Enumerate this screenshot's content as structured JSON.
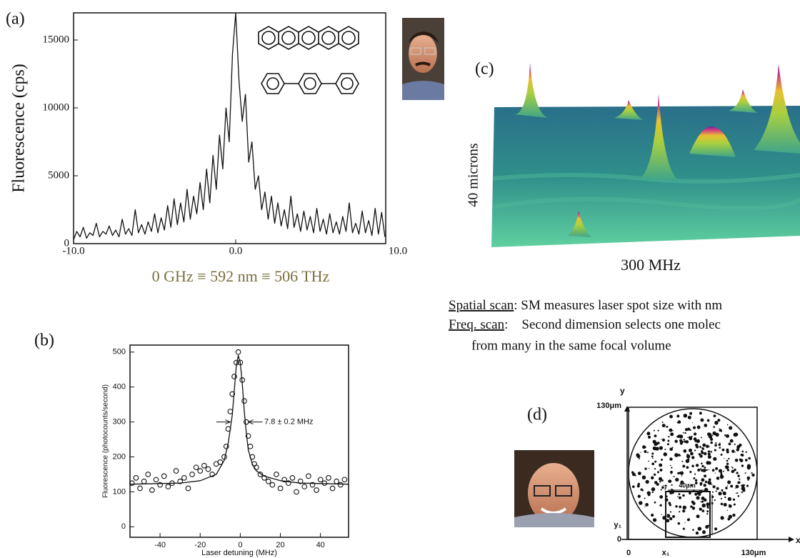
{
  "chart_data": [
    {
      "type": "line",
      "y_label": "Fluorescence (cps)",
      "color": "#111111",
      "xlim": [
        -10,
        9.25
      ],
      "ylim": [
        0,
        17000
      ],
      "xticks": [
        {
          "value": -10,
          "label": "-10.0"
        },
        {
          "value": 0,
          "label": "0.0"
        },
        {
          "value": 10,
          "label": "10.0"
        }
      ],
      "yticks": [
        0,
        5000,
        10000,
        15000
      ],
      "x": [
        -10.0,
        -9.8,
        -9.6,
        -9.4,
        -9.2,
        -9.0,
        -8.8,
        -8.6,
        -8.4,
        -8.2,
        -8.0,
        -7.8,
        -7.6,
        -7.4,
        -7.2,
        -7.0,
        -6.8,
        -6.6,
        -6.4,
        -6.2,
        -6.0,
        -5.8,
        -5.6,
        -5.4,
        -5.2,
        -5.0,
        -4.8,
        -4.6,
        -4.4,
        -4.2,
        -4.0,
        -3.8,
        -3.6,
        -3.4,
        -3.2,
        -3.0,
        -2.8,
        -2.6,
        -2.4,
        -2.2,
        -2.0,
        -1.8,
        -1.6,
        -1.4,
        -1.2,
        -1.0,
        -0.8,
        -0.6,
        -0.4,
        -0.2,
        0,
        0.2,
        0.4,
        0.6,
        0.8,
        1.0,
        1.2,
        1.4,
        1.6,
        1.8,
        2.0,
        2.2,
        2.4,
        2.6,
        2.8,
        3.0,
        3.2,
        3.4,
        3.6,
        3.8,
        4.0,
        4.2,
        4.4,
        4.6,
        4.8,
        5.0,
        5.2,
        5.4,
        5.6,
        5.8,
        6.0,
        6.2,
        6.4,
        6.6,
        6.8,
        7.0,
        7.2,
        7.4,
        7.6,
        7.8,
        8.0,
        8.2,
        8.4,
        8.6,
        8.8,
        9.0,
        9.2
      ],
      "values": [
        300,
        900,
        500,
        1200,
        400,
        800,
        600,
        1500,
        500,
        900,
        700,
        1300,
        600,
        1000,
        500,
        1800,
        700,
        1100,
        600,
        2500,
        800,
        1400,
        700,
        1600,
        900,
        2200,
        800,
        1900,
        1000,
        2800,
        1200,
        3300,
        1400,
        3000,
        1600,
        4000,
        1800,
        3500,
        2200,
        4500,
        2500,
        5500,
        3000,
        6500,
        4000,
        8000,
        5500,
        10000,
        7500,
        14000,
        17000,
        12000,
        9000,
        11000,
        6000,
        7500,
        4000,
        5000,
        2500,
        3800,
        1800,
        3500,
        1500,
        3000,
        1300,
        2500,
        1100,
        3500,
        1200,
        2200,
        900,
        2400,
        1000,
        2000,
        800,
        2600,
        900,
        1800,
        700,
        2200,
        800,
        1600,
        700,
        2000,
        900,
        3000,
        800,
        1500,
        700,
        2400,
        800,
        1700,
        600,
        2600,
        700,
        2300,
        500
      ]
    },
    {
      "type": "scatter",
      "y_label": "Fluorescence (photocounts/second)",
      "x_label": "Laser detuning (MHz)",
      "annotation": "7.8 ± 0.2 MHz",
      "xlim": [
        -55,
        54
      ],
      "ylim": [
        -30,
        520
      ],
      "xticks": [
        -40,
        -20,
        0,
        20,
        40
      ],
      "yticks": [
        0,
        100,
        200,
        300,
        400,
        500
      ],
      "series": [
        {
          "type": "scatter",
          "color": "#111111",
          "x": [
            -54,
            -52,
            -50,
            -48,
            -46,
            -44,
            -42,
            -40,
            -38,
            -36,
            -34,
            -32,
            -30,
            -28,
            -26,
            -24,
            -22,
            -20,
            -18,
            -16,
            -14,
            -12,
            -10,
            -8,
            -7,
            -6,
            -5,
            -4,
            -3,
            -2,
            -1,
            0,
            1,
            2,
            3,
            4,
            5,
            6,
            7,
            8,
            10,
            12,
            14,
            16,
            18,
            20,
            22,
            24,
            26,
            28,
            30,
            32,
            34,
            36,
            38,
            40,
            42,
            44,
            46,
            48,
            50,
            52
          ],
          "values": [
            125,
            140,
            110,
            130,
            150,
            105,
            135,
            120,
            145,
            115,
            125,
            160,
            130,
            140,
            110,
            150,
            170,
            160,
            175,
            165,
            150,
            180,
            185,
            200,
            230,
            280,
            330,
            380,
            430,
            470,
            500,
            470,
            420,
            360,
            300,
            260,
            230,
            200,
            180,
            170,
            150,
            140,
            130,
            120,
            150,
            110,
            135,
            125,
            140,
            100,
            130,
            115,
            145,
            120,
            105,
            135,
            125,
            140,
            110,
            130,
            120,
            135
          ]
        },
        {
          "type": "line",
          "color": "#111111",
          "x": [
            -55,
            -30,
            -20,
            -12,
            -8,
            -6,
            -4,
            -3,
            -2,
            -1,
            0,
            1,
            2,
            3,
            4,
            6,
            8,
            12,
            20,
            30,
            54
          ],
          "values": [
            122,
            125,
            132,
            150,
            190,
            240,
            320,
            390,
            460,
            490,
            470,
            410,
            330,
            270,
            220,
            180,
            160,
            145,
            132,
            125,
            122
          ]
        }
      ]
    }
  ],
  "labels": {
    "a": "(a)",
    "b": "(b)",
    "c": "(c)",
    "d": "(d)"
  },
  "caption_a": "0 GHz ≡ 592 nm ≡ 506 THz",
  "panel_c": {
    "y_label": "40 microns",
    "x_label": "300 MHz"
  },
  "notes": [
    {
      "term": "Spatial scan",
      "text": ": SM measures laser spot size with nm"
    },
    {
      "term": "Freq. scan",
      "text": ":    Second dimension selects one molec"
    }
  ],
  "note_cont": "from many in the same focal volume",
  "panel_d": {
    "y_axis": "y",
    "x_axis": "x",
    "top": "130μm",
    "right": "130μm",
    "y1": "y₁",
    "x1": "x₁",
    "origin_y": "0",
    "origin_x": "0",
    "box": "40μm"
  }
}
